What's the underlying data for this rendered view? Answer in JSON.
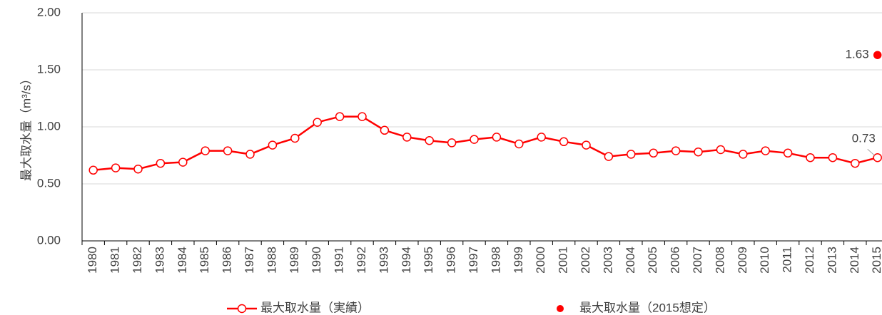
{
  "chart_data": {
    "type": "line",
    "y_label": "最大取水量（m³/s）",
    "categories": [
      "1980",
      "1981",
      "1982",
      "1983",
      "1984",
      "1985",
      "1986",
      "1987",
      "1988",
      "1989",
      "1990",
      "1991",
      "1992",
      "1993",
      "1994",
      "1995",
      "1996",
      "1997",
      "1998",
      "1999",
      "2000",
      "2001",
      "2002",
      "2003",
      "2004",
      "2005",
      "2006",
      "2007",
      "2008",
      "2009",
      "2010",
      "2011",
      "2012",
      "2013",
      "2014",
      "2015"
    ],
    "series": [
      {
        "name": "最大取水量（実績）",
        "color": "#ff0000",
        "marker": "hollow-circle",
        "values": [
          0.62,
          0.64,
          0.63,
          0.68,
          0.69,
          0.79,
          0.79,
          0.76,
          0.84,
          0.9,
          1.04,
          1.09,
          1.09,
          0.97,
          0.91,
          0.88,
          0.86,
          0.89,
          0.91,
          0.85,
          0.91,
          0.87,
          0.84,
          0.74,
          0.76,
          0.77,
          0.79,
          0.78,
          0.8,
          0.76,
          0.79,
          0.77,
          0.73,
          0.73,
          0.68,
          0.73
        ],
        "value_labels": [
          null,
          null,
          null,
          null,
          null,
          null,
          null,
          null,
          null,
          null,
          null,
          null,
          null,
          null,
          null,
          null,
          null,
          null,
          null,
          null,
          null,
          null,
          null,
          null,
          null,
          null,
          null,
          null,
          null,
          null,
          null,
          null,
          null,
          null,
          null,
          "0.73"
        ]
      },
      {
        "name": "最大取水量（2015想定）",
        "color": "#ff0000",
        "marker": "filled-circle",
        "values": [
          null,
          null,
          null,
          null,
          null,
          null,
          null,
          null,
          null,
          null,
          null,
          null,
          null,
          null,
          null,
          null,
          null,
          null,
          null,
          null,
          null,
          null,
          null,
          null,
          null,
          null,
          null,
          null,
          null,
          null,
          null,
          null,
          null,
          null,
          null,
          1.63
        ],
        "value_labels": [
          null,
          null,
          null,
          null,
          null,
          null,
          null,
          null,
          null,
          null,
          null,
          null,
          null,
          null,
          null,
          null,
          null,
          null,
          null,
          null,
          null,
          null,
          null,
          null,
          null,
          null,
          null,
          null,
          null,
          null,
          null,
          null,
          null,
          null,
          null,
          "1.63"
        ]
      }
    ],
    "ylim": [
      0,
      2
    ],
    "yticks": [
      {
        "value": 0,
        "label": "0.00"
      },
      {
        "value": 0.5,
        "label": "0.50"
      },
      {
        "value": 1,
        "label": "1.00"
      },
      {
        "value": 1.5,
        "label": "1.50"
      },
      {
        "value": 2,
        "label": "2.00"
      }
    ],
    "grid": true,
    "legend": "bottom"
  }
}
